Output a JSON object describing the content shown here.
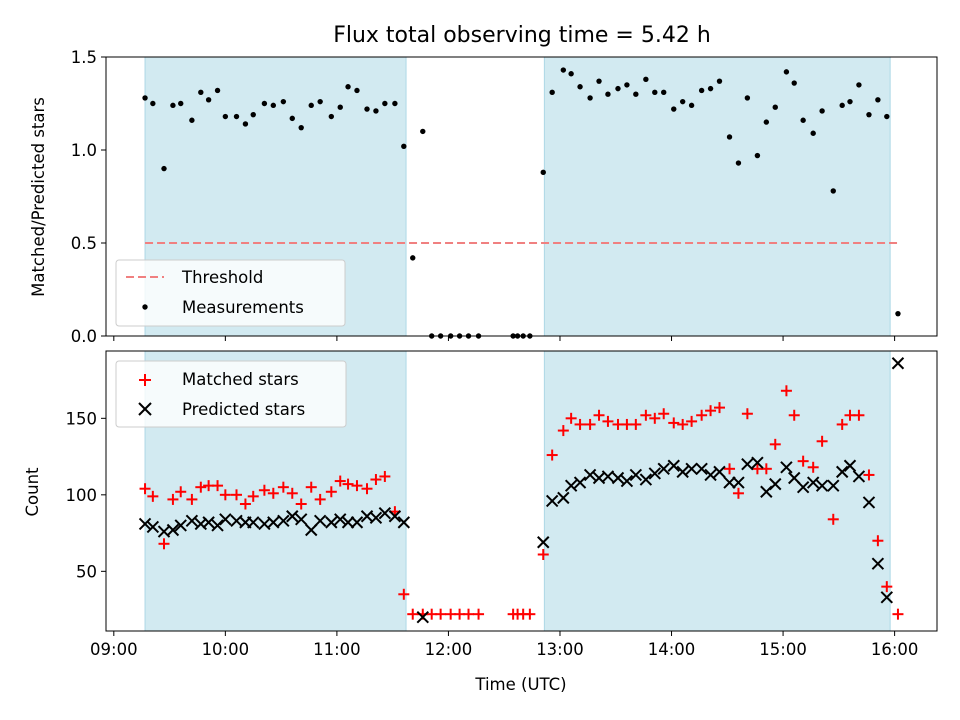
{
  "title": "Flux total observing time = 5.42 h",
  "colors": {
    "shade": "#add8e6",
    "threshold": "#f08080",
    "measurements": "#000000",
    "matched": "#ff0000",
    "predicted": "#000000"
  },
  "x_axis": {
    "label": "Time (UTC)",
    "range_hours": [
      8.93,
      16.38
    ],
    "ticks": [
      {
        "value": 9,
        "label": "09:00"
      },
      {
        "value": 10,
        "label": "10:00"
      },
      {
        "value": 11,
        "label": "11:00"
      },
      {
        "value": 12,
        "label": "12:00"
      },
      {
        "value": 13,
        "label": "13:00"
      },
      {
        "value": 14,
        "label": "14:00"
      },
      {
        "value": 15,
        "label": "15:00"
      },
      {
        "value": 16,
        "label": "16:00"
      }
    ]
  },
  "shaded_intervals_hours": [
    [
      9.28,
      11.62
    ],
    [
      12.86,
      15.96
    ]
  ],
  "chart_data": [
    {
      "type": "scatter",
      "panel": "ratio",
      "ylabel": "Matched/Predicted stars",
      "ylim": [
        0,
        1.5
      ],
      "yticks": [
        {
          "value": 0.0,
          "label": "0.0"
        },
        {
          "value": 0.5,
          "label": "0.5"
        },
        {
          "value": 1.0,
          "label": "1.0"
        },
        {
          "value": 1.5,
          "label": "1.5"
        }
      ],
      "threshold": {
        "value": 0.5,
        "label": "Threshold",
        "x_range": [
          9.28,
          16.05
        ]
      },
      "series": [
        {
          "name": "Measurements",
          "x": [
            9.28,
            9.35,
            9.45,
            9.53,
            9.6,
            9.7,
            9.78,
            9.85,
            9.93,
            10.0,
            10.1,
            10.18,
            10.25,
            10.35,
            10.43,
            10.52,
            10.6,
            10.68,
            10.77,
            10.85,
            10.95,
            11.03,
            11.1,
            11.18,
            11.27,
            11.35,
            11.43,
            11.52,
            11.6,
            11.68,
            11.77,
            11.85,
            11.93,
            12.02,
            12.1,
            12.18,
            12.27,
            12.58,
            12.62,
            12.67,
            12.73,
            12.85,
            12.93,
            13.03,
            13.1,
            13.18,
            13.27,
            13.35,
            13.43,
            13.52,
            13.6,
            13.68,
            13.77,
            13.85,
            13.93,
            14.02,
            14.1,
            14.18,
            14.27,
            14.35,
            14.43,
            14.52,
            14.6,
            14.68,
            14.77,
            14.85,
            14.93,
            15.03,
            15.1,
            15.18,
            15.27,
            15.35,
            15.45,
            15.53,
            15.6,
            15.68,
            15.77,
            15.85,
            15.93,
            16.03
          ],
          "y": [
            1.28,
            1.25,
            0.9,
            1.24,
            1.25,
            1.16,
            1.31,
            1.27,
            1.32,
            1.18,
            1.18,
            1.14,
            1.19,
            1.25,
            1.24,
            1.26,
            1.17,
            1.12,
            1.24,
            1.26,
            1.18,
            1.23,
            1.34,
            1.32,
            1.22,
            1.21,
            1.25,
            1.25,
            1.02,
            0.42,
            1.1,
            0.0,
            0.0,
            0.0,
            0.0,
            0.0,
            0.0,
            0.0,
            0.0,
            0.0,
            0.0,
            0.88,
            1.31,
            1.43,
            1.41,
            1.34,
            1.28,
            1.37,
            1.3,
            1.33,
            1.35,
            1.3,
            1.38,
            1.31,
            1.31,
            1.22,
            1.26,
            1.24,
            1.32,
            1.33,
            1.37,
            1.07,
            0.93,
            1.28,
            0.97,
            1.15,
            1.23,
            1.42,
            1.36,
            1.16,
            1.09,
            1.21,
            0.78,
            1.24,
            1.26,
            1.35,
            1.19,
            1.27,
            1.18,
            0.12
          ]
        }
      ],
      "legend": {
        "position": "lower-left",
        "entries": [
          "Threshold",
          "Measurements"
        ]
      }
    },
    {
      "type": "scatter",
      "panel": "count",
      "ylabel": "Count",
      "ylim": [
        11,
        194
      ],
      "yticks": [
        {
          "value": 50,
          "label": "50"
        },
        {
          "value": 100,
          "label": "100"
        },
        {
          "value": 150,
          "label": "150"
        }
      ],
      "series": [
        {
          "name": "Matched stars",
          "marker": "plus",
          "x": [
            9.28,
            9.35,
            9.45,
            9.53,
            9.6,
            9.7,
            9.78,
            9.85,
            9.93,
            10.0,
            10.1,
            10.18,
            10.25,
            10.35,
            10.43,
            10.52,
            10.6,
            10.68,
            10.77,
            10.85,
            10.95,
            11.03,
            11.1,
            11.18,
            11.27,
            11.35,
            11.43,
            11.52,
            11.6,
            11.68,
            11.77,
            11.85,
            11.93,
            12.02,
            12.1,
            12.18,
            12.27,
            12.58,
            12.62,
            12.67,
            12.73,
            12.85,
            12.93,
            13.03,
            13.1,
            13.18,
            13.27,
            13.35,
            13.43,
            13.52,
            13.6,
            13.68,
            13.77,
            13.85,
            13.93,
            14.02,
            14.1,
            14.18,
            14.27,
            14.35,
            14.43,
            14.52,
            14.6,
            14.68,
            14.77,
            14.85,
            14.93,
            15.03,
            15.1,
            15.18,
            15.27,
            15.35,
            15.45,
            15.53,
            15.6,
            15.68,
            15.77,
            15.85,
            15.93,
            16.03
          ],
          "y": [
            104,
            99,
            68,
            97,
            102,
            97,
            105,
            106,
            106,
            100,
            100,
            94,
            99,
            103,
            101,
            105,
            101,
            94,
            105,
            97,
            102,
            109,
            107,
            106,
            104,
            110,
            112,
            89,
            35,
            22,
            22,
            22,
            22,
            22,
            22,
            22,
            22,
            22,
            22,
            22,
            22,
            61,
            126,
            142,
            150,
            146,
            146,
            152,
            148,
            146,
            146,
            146,
            152,
            150,
            153,
            147,
            146,
            148,
            152,
            155,
            157,
            117,
            101,
            153,
            117,
            117,
            133,
            168,
            152,
            122,
            118,
            135,
            84,
            146,
            152,
            152,
            113,
            70,
            40,
            22
          ]
        },
        {
          "name": "Predicted stars",
          "marker": "x",
          "x": [
            9.28,
            9.35,
            9.45,
            9.53,
            9.6,
            9.7,
            9.78,
            9.85,
            9.93,
            10.0,
            10.1,
            10.18,
            10.25,
            10.35,
            10.43,
            10.52,
            10.6,
            10.68,
            10.77,
            10.85,
            10.95,
            11.03,
            11.1,
            11.18,
            11.27,
            11.35,
            11.43,
            11.52,
            11.6,
            11.77,
            12.85,
            12.93,
            13.03,
            13.1,
            13.18,
            13.27,
            13.35,
            13.43,
            13.52,
            13.6,
            13.68,
            13.77,
            13.85,
            13.93,
            14.02,
            14.1,
            14.18,
            14.27,
            14.35,
            14.43,
            14.52,
            14.6,
            14.68,
            14.77,
            14.85,
            14.93,
            15.03,
            15.1,
            15.18,
            15.27,
            15.35,
            15.45,
            15.53,
            15.6,
            15.68,
            15.77,
            15.85,
            15.93,
            16.03
          ],
          "y": [
            81,
            79,
            76,
            77,
            80,
            83,
            81,
            82,
            80,
            84,
            83,
            82,
            82,
            81,
            82,
            83,
            86,
            84,
            77,
            83,
            82,
            84,
            82,
            82,
            86,
            85,
            88,
            86,
            82,
            20,
            69,
            96,
            98,
            106,
            108,
            113,
            111,
            112,
            111,
            109,
            113,
            110,
            114,
            117,
            119,
            115,
            117,
            117,
            113,
            115,
            108,
            108,
            120,
            121,
            102,
            107,
            118,
            111,
            105,
            108,
            106,
            106,
            115,
            119,
            112,
            95,
            55,
            33,
            186
          ]
        }
      ],
      "legend": {
        "position": "upper-left",
        "entries": [
          "Matched stars",
          "Predicted stars"
        ]
      }
    }
  ]
}
